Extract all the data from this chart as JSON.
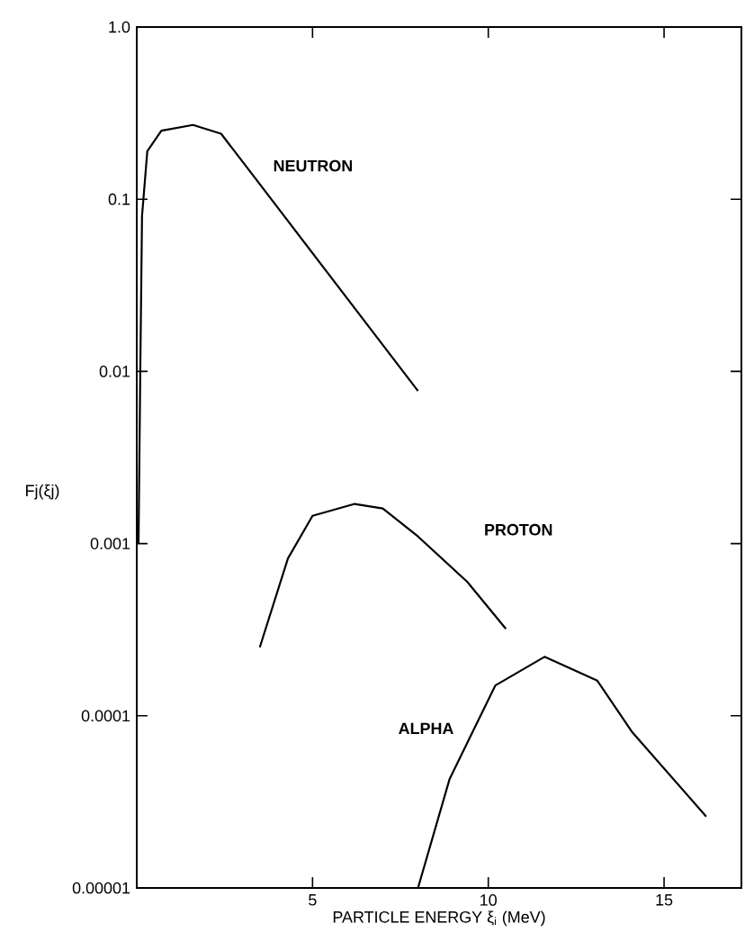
{
  "chart_data": {
    "type": "line",
    "xlabel": "PARTICLE ENERGY ξ$_{i}$ (MeV)",
    "ylabel": "Fj(ξj)",
    "log": "y",
    "xlim": [
      0,
      17.2
    ],
    "xticks": [
      5,
      10,
      15
    ],
    "ylim": [
      1e-05,
      1
    ],
    "yticks": [
      {
        "value": 1,
        "label": "1.0"
      },
      {
        "value": 0.1,
        "label": "0.1"
      },
      {
        "value": 0.01,
        "label": "0.01"
      },
      {
        "value": 0.001,
        "label": "0.001"
      },
      {
        "value": 0.0001,
        "label": "0.0001"
      },
      {
        "value": 1e-05,
        "label": "0.00001"
      }
    ],
    "marker": "none",
    "line_style": "solid",
    "series": [
      {
        "name": "NEUTRON",
        "color": "#000000",
        "x": [
          0.05,
          0.1,
          0.15,
          0.3,
          0.7,
          1.6,
          2.4,
          3.4,
          8.0
        ],
        "values": [
          0.001,
          0.01,
          0.08,
          0.19,
          0.25,
          0.27,
          0.24,
          0.13,
          0.0077
        ]
      },
      {
        "name": "PROTON",
        "color": "#000000",
        "x": [
          3.5,
          4.3,
          5.0,
          6.2,
          7.0,
          8.0,
          9.4,
          10.5
        ],
        "values": [
          0.00025,
          0.00082,
          0.00145,
          0.0017,
          0.0016,
          0.0011,
          0.0006,
          0.00032
        ]
      },
      {
        "name": "ALPHA",
        "color": "#000000",
        "x": [
          8.0,
          8.9,
          10.2,
          11.6,
          13.1,
          14.1,
          16.2
        ],
        "values": [
          1e-05,
          4.3e-05,
          0.00015,
          0.00022,
          0.00016,
          8e-05,
          2.6e-05
        ]
      }
    ]
  }
}
